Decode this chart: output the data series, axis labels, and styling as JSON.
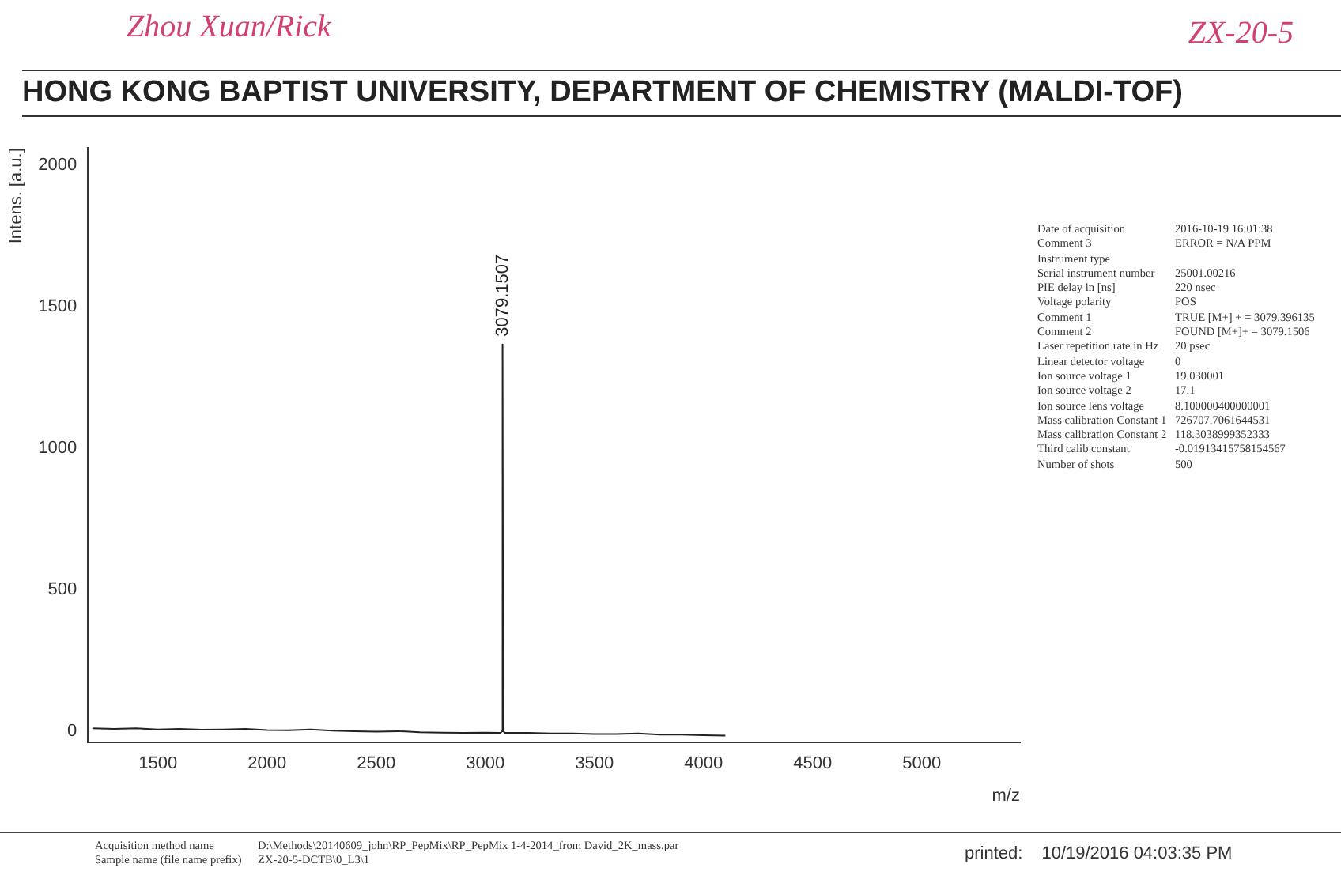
{
  "chart_data": {
    "type": "line",
    "title": "HONG KONG BAPTIST UNIVERSITY, DEPARTMENT OF CHEMISTRY (MALDI-TOF)",
    "xlabel": "m/z",
    "ylabel": "Intens. [a.u.]",
    "xlim": [
      1180,
      5450
    ],
    "xticks": [
      1500,
      2000,
      2500,
      3000,
      3500,
      4000,
      4500,
      5000
    ],
    "ylim": [
      -40,
      2060
    ],
    "yticks": [
      0,
      500,
      1000,
      1500,
      2000
    ],
    "marker": "none",
    "legend": false,
    "grid": false,
    "series": [
      {
        "color": "#222222",
        "x": [
          1200,
          1300,
          1400,
          1500,
          1600,
          1700,
          1800,
          1900,
          2000,
          2100,
          2200,
          2300,
          2400,
          2500,
          2600,
          2700,
          2800,
          2900,
          3000,
          3070,
          3076,
          3079.1507,
          3082,
          3090,
          3200,
          3300,
          3400,
          3500,
          3600,
          3700,
          3800,
          3900,
          4000,
          4100
        ],
        "values": [
          10,
          8,
          10,
          6,
          8,
          5,
          6,
          8,
          4,
          3,
          6,
          2,
          0,
          -2,
          0,
          -4,
          -5,
          -6,
          -5,
          -6,
          0,
          1366,
          0,
          -6,
          -6,
          -8,
          -8,
          -10,
          -10,
          -8,
          -12,
          -12,
          -14,
          -16
        ]
      }
    ],
    "annotations": [
      "Zhou Xuan/Rick",
      "ZX-20-5",
      {
        "text": "3079.1507",
        "x": 3079.1507,
        "y": 1366
      },
      "Date of acquisition\t2016-10-19 16:01:38",
      "Comment 3\tERROR = N/A PPM",
      "Instrument type\t",
      "Serial instrument number\t25001.00216",
      "PIE delay in [ns]\t220 nsec",
      "Voltage polarity\tPOS",
      "Comment 1\tTRUE [M+] + = 3079.396135",
      "Comment 2\tFOUND [M+]+ = 3079.1506",
      "Laser repetition rate in Hz\t20 psec",
      "Linear detector voltage\t0",
      "Ion source voltage 1\t19.030001",
      "Ion source voltage 2\t17.1",
      "Ion source lens voltage\t8.100000400000001",
      "Mass calibration Constant 1\t726707.7061644531",
      "Mass calibration Constant 2\t118.3038999352333",
      "Third calib constant\t-0.01913415758154567",
      "Number of shots\t500",
      "Acquisition method name\tD:\\Methods\\20140609_john\\RP_PepMix\\RP_PepMix 1-4-2014_from David_2K_mass.par",
      "Sample name (file name prefix)\tZX-20-5-DCTB\\0_L3\\1",
      "printed:\t10/19/2016 04:03:35 PM"
    ]
  }
}
